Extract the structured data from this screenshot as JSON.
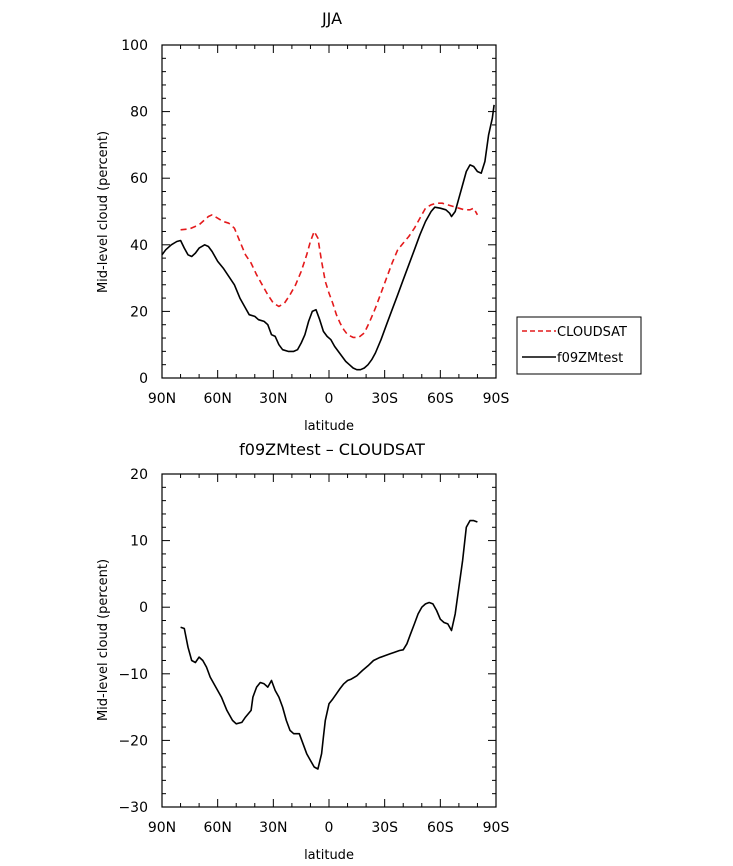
{
  "chart_data": [
    {
      "type": "line",
      "title": "JJA",
      "xlabel": "latitude",
      "ylabel": "Mid-level cloud (percent)",
      "xlim": [
        90,
        -90
      ],
      "ylim": [
        0,
        100
      ],
      "xticks": [
        {
          "value": 90,
          "label": "90N"
        },
        {
          "value": 60,
          "label": "60N"
        },
        {
          "value": 30,
          "label": "30N"
        },
        {
          "value": 0,
          "label": "0"
        },
        {
          "value": -30,
          "label": "30S"
        },
        {
          "value": -60,
          "label": "60S"
        },
        {
          "value": -90,
          "label": "90S"
        }
      ],
      "yticks": [
        0,
        20,
        40,
        60,
        80,
        100
      ],
      "legend_position": "right",
      "series": [
        {
          "name": "CLOUDSAT",
          "color": "#e41a1c",
          "dash": "dashed",
          "points": [
            [
              80,
              44.5
            ],
            [
              75,
              44.8
            ],
            [
              70,
              46
            ],
            [
              65,
              48.5
            ],
            [
              63,
              49
            ],
            [
              60,
              48
            ],
            [
              57,
              47
            ],
            [
              54,
              46.5
            ],
            [
              51,
              45
            ],
            [
              48,
              41
            ],
            [
              45,
              37
            ],
            [
              42,
              34.5
            ],
            [
              39,
              31
            ],
            [
              36,
              28
            ],
            [
              33,
              25
            ],
            [
              30,
              22.5
            ],
            [
              27,
              21.5
            ],
            [
              24,
              22.5
            ],
            [
              21,
              25
            ],
            [
              18,
              28
            ],
            [
              15,
              32
            ],
            [
              12,
              37
            ],
            [
              10,
              41
            ],
            [
              8,
              44
            ],
            [
              6,
              42
            ],
            [
              4,
              35
            ],
            [
              2,
              29
            ],
            [
              0,
              25.5
            ],
            [
              -2,
              22.5
            ],
            [
              -4,
              19
            ],
            [
              -6,
              16.5
            ],
            [
              -8,
              14.5
            ],
            [
              -10,
              13
            ],
            [
              -13,
              12.2
            ],
            [
              -16,
              12.2
            ],
            [
              -19,
              13.5
            ],
            [
              -22,
              17
            ],
            [
              -25,
              21
            ],
            [
              -28,
              25.5
            ],
            [
              -31,
              30
            ],
            [
              -34,
              34.5
            ],
            [
              -37,
              38.5
            ],
            [
              -40,
              40.5
            ],
            [
              -43,
              42.5
            ],
            [
              -46,
              45
            ],
            [
              -49,
              48
            ],
            [
              -52,
              51
            ],
            [
              -55,
              52
            ],
            [
              -58,
              52.5
            ],
            [
              -61,
              52.5
            ],
            [
              -64,
              52
            ],
            [
              -67,
              51.5
            ],
            [
              -70,
              51
            ],
            [
              -73,
              50.5
            ],
            [
              -76,
              50.5
            ],
            [
              -78,
              51
            ],
            [
              -80,
              49
            ]
          ]
        },
        {
          "name": "f09ZMtest",
          "color": "#000000",
          "dash": "solid",
          "points": [
            [
              90,
              37
            ],
            [
              88,
              38.5
            ],
            [
              85,
              40
            ],
            [
              82,
              41
            ],
            [
              80,
              41.3
            ],
            [
              78,
              39
            ],
            [
              76,
              37
            ],
            [
              74,
              36.5
            ],
            [
              72,
              37.5
            ],
            [
              70,
              39
            ],
            [
              67,
              40
            ],
            [
              65,
              39.5
            ],
            [
              63,
              38
            ],
            [
              60,
              35
            ],
            [
              57,
              33
            ],
            [
              54,
              30.5
            ],
            [
              51,
              28
            ],
            [
              48,
              24
            ],
            [
              45,
              21
            ],
            [
              43,
              19
            ],
            [
              40,
              18.5
            ],
            [
              38,
              17.5
            ],
            [
              35,
              17
            ],
            [
              33,
              16
            ],
            [
              31,
              13
            ],
            [
              29,
              12.5
            ],
            [
              27,
              10
            ],
            [
              25,
              8.5
            ],
            [
              22,
              8
            ],
            [
              19,
              8
            ],
            [
              17,
              8.5
            ],
            [
              15,
              10.5
            ],
            [
              13,
              13
            ],
            [
              11,
              17
            ],
            [
              9,
              20
            ],
            [
              7,
              20.5
            ],
            [
              5,
              17.5
            ],
            [
              3,
              14
            ],
            [
              1,
              12.5
            ],
            [
              -1,
              11.5
            ],
            [
              -3,
              9.5
            ],
            [
              -5,
              8
            ],
            [
              -7,
              6.5
            ],
            [
              -9,
              5
            ],
            [
              -11,
              4
            ],
            [
              -13,
              3
            ],
            [
              -15,
              2.5
            ],
            [
              -17,
              2.5
            ],
            [
              -19,
              3
            ],
            [
              -21,
              4
            ],
            [
              -23,
              5.5
            ],
            [
              -25,
              7.5
            ],
            [
              -28,
              11.5
            ],
            [
              -31,
              16
            ],
            [
              -34,
              20.5
            ],
            [
              -37,
              25
            ],
            [
              -40,
              29.5
            ],
            [
              -43,
              34
            ],
            [
              -46,
              38.5
            ],
            [
              -49,
              43
            ],
            [
              -52,
              47
            ],
            [
              -55,
              50
            ],
            [
              -57,
              51.3
            ],
            [
              -60,
              51
            ],
            [
              -63,
              50.5
            ],
            [
              -65,
              49.5
            ],
            [
              -66,
              48.5
            ],
            [
              -68,
              50
            ],
            [
              -70,
              54
            ],
            [
              -72,
              58
            ],
            [
              -74,
              62
            ],
            [
              -76,
              64
            ],
            [
              -78,
              63.5
            ],
            [
              -80,
              62
            ],
            [
              -82,
              61.5
            ],
            [
              -84,
              65
            ],
            [
              -86,
              73
            ],
            [
              -88,
              78
            ],
            [
              -89,
              82
            ]
          ]
        }
      ]
    },
    {
      "type": "line",
      "title": "f09ZMtest – CLOUDSAT",
      "xlabel": "latitude",
      "ylabel": "Mid-level cloud (percent)",
      "xlim": [
        90,
        -90
      ],
      "ylim": [
        -30,
        20
      ],
      "xticks": [
        {
          "value": 90,
          "label": "90N"
        },
        {
          "value": 60,
          "label": "60N"
        },
        {
          "value": 30,
          "label": "30N"
        },
        {
          "value": 0,
          "label": "0"
        },
        {
          "value": -30,
          "label": "30S"
        },
        {
          "value": -60,
          "label": "60S"
        },
        {
          "value": -90,
          "label": "90S"
        }
      ],
      "yticks": [
        -30,
        -20,
        -10,
        0,
        10,
        20
      ],
      "series": [
        {
          "color": "#000000",
          "dash": "solid",
          "points": [
            [
              80,
              -3
            ],
            [
              78,
              -3.2
            ],
            [
              76,
              -6
            ],
            [
              74,
              -8
            ],
            [
              72,
              -8.3
            ],
            [
              70,
              -7.5
            ],
            [
              68,
              -8
            ],
            [
              66,
              -9
            ],
            [
              64,
              -10.5
            ],
            [
              61,
              -12
            ],
            [
              58,
              -13.5
            ],
            [
              55,
              -15.5
            ],
            [
              52,
              -17
            ],
            [
              50,
              -17.5
            ],
            [
              47,
              -17.3
            ],
            [
              45,
              -16.5
            ],
            [
              42,
              -15.5
            ],
            [
              41,
              -13.5
            ],
            [
              39,
              -12
            ],
            [
              37,
              -11.3
            ],
            [
              35,
              -11.5
            ],
            [
              33,
              -12
            ],
            [
              31,
              -11
            ],
            [
              29,
              -12.5
            ],
            [
              27,
              -13.5
            ],
            [
              25,
              -15
            ],
            [
              23,
              -17
            ],
            [
              21,
              -18.5
            ],
            [
              19,
              -19
            ],
            [
              16,
              -19
            ],
            [
              14,
              -20.5
            ],
            [
              12,
              -22
            ],
            [
              10,
              -23
            ],
            [
              8,
              -24
            ],
            [
              6,
              -24.3
            ],
            [
              4,
              -22
            ],
            [
              3,
              -19.5
            ],
            [
              2,
              -17
            ],
            [
              0,
              -14.5
            ],
            [
              -2,
              -13.8
            ],
            [
              -4,
              -13
            ],
            [
              -6,
              -12.2
            ],
            [
              -8,
              -11.5
            ],
            [
              -10,
              -11
            ],
            [
              -12,
              -10.8
            ],
            [
              -15,
              -10.3
            ],
            [
              -18,
              -9.5
            ],
            [
              -21,
              -8.8
            ],
            [
              -24,
              -8
            ],
            [
              -27,
              -7.6
            ],
            [
              -30,
              -7.3
            ],
            [
              -33,
              -7
            ],
            [
              -35,
              -6.8
            ],
            [
              -38,
              -6.5
            ],
            [
              -40,
              -6.4
            ],
            [
              -42,
              -5.5
            ],
            [
              -44,
              -4
            ],
            [
              -46,
              -2.5
            ],
            [
              -48,
              -1
            ],
            [
              -50,
              0
            ],
            [
              -52,
              0.5
            ],
            [
              -54,
              0.7
            ],
            [
              -56,
              0.5
            ],
            [
              -58,
              -0.5
            ],
            [
              -60,
              -1.8
            ],
            [
              -62,
              -2.3
            ],
            [
              -64,
              -2.5
            ],
            [
              -66,
              -3.5
            ],
            [
              -68,
              -1
            ],
            [
              -70,
              3
            ],
            [
              -72,
              7
            ],
            [
              -74,
              12
            ],
            [
              -76,
              13
            ],
            [
              -78,
              13
            ],
            [
              -80,
              12.8
            ]
          ]
        }
      ]
    }
  ]
}
